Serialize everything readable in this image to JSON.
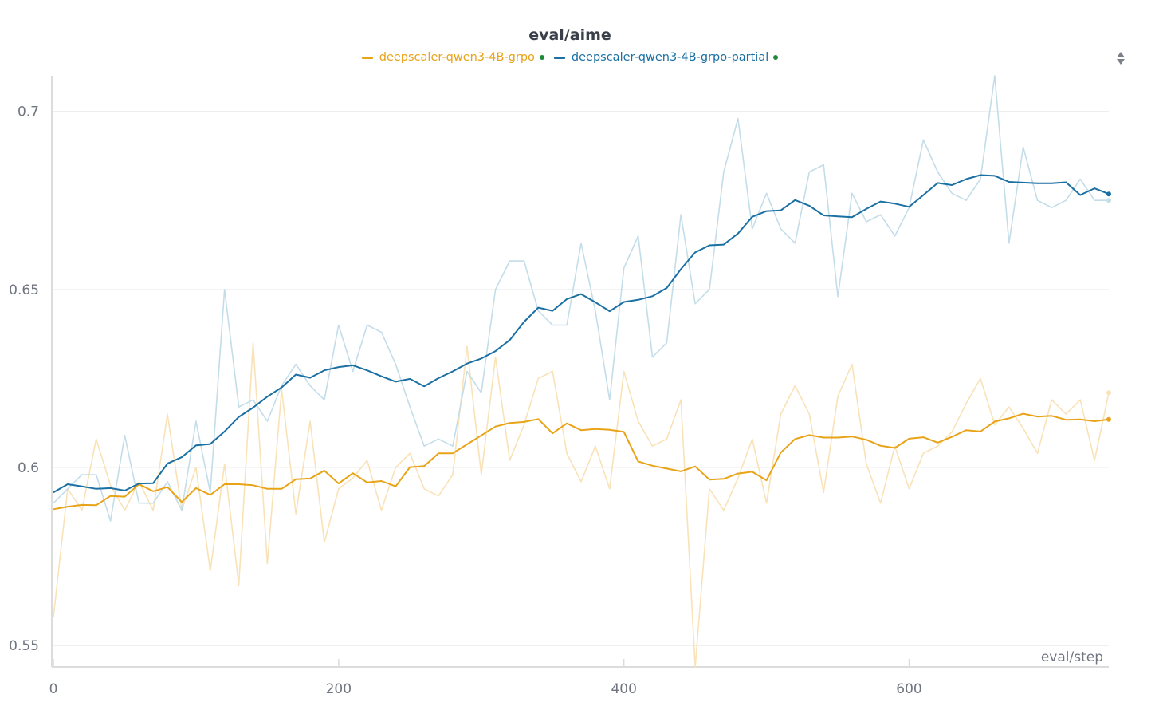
{
  "colors": {
    "series1": "#e8a317",
    "series1_light": "#f9e2b7",
    "series2": "#1a6fa3",
    "series2_light": "#c3dde9",
    "status": "#1f8a3a",
    "grid": "#ececec",
    "axis": "#dcdcdc",
    "text": "#707580"
  },
  "chart_data": {
    "type": "line",
    "title": "eval/aime",
    "xlabel": "eval/step",
    "ylabel": "",
    "xlim": [
      0,
      740
    ],
    "ylim": [
      0.544,
      0.71
    ],
    "xticks": [
      "0",
      "200",
      "400",
      "600"
    ],
    "xtick_values": [
      0,
      200,
      400,
      600
    ],
    "yticks": [
      "0.55",
      "0.6",
      "0.65",
      "0.7"
    ],
    "ytick_values": [
      0.55,
      0.6,
      0.65,
      0.7
    ],
    "x": [
      0,
      10,
      20,
      30,
      40,
      50,
      60,
      70,
      80,
      90,
      100,
      110,
      120,
      130,
      140,
      150,
      160,
      170,
      180,
      190,
      200,
      210,
      220,
      230,
      240,
      250,
      260,
      270,
      280,
      290,
      300,
      310,
      320,
      330,
      340,
      350,
      360,
      370,
      380,
      390,
      400,
      410,
      420,
      430,
      440,
      450,
      460,
      470,
      480,
      490,
      500,
      510,
      520,
      530,
      540,
      550,
      560,
      570,
      580,
      590,
      600,
      610,
      620,
      630,
      640,
      650,
      660,
      670,
      680,
      690,
      700,
      710,
      720,
      730,
      740
    ],
    "series": [
      {
        "name": "deepscaler-qwen3-4B-grpo",
        "color": "#e8a317",
        "raw": [
          0.558,
          0.594,
          0.588,
          0.608,
          0.595,
          0.588,
          0.596,
          0.588,
          0.615,
          0.588,
          0.6,
          0.571,
          0.601,
          0.567,
          0.635,
          0.573,
          0.622,
          0.587,
          0.613,
          0.579,
          0.594,
          0.597,
          0.602,
          0.588,
          0.6,
          0.604,
          0.594,
          0.592,
          0.598,
          0.634,
          0.598,
          0.631,
          0.602,
          0.612,
          0.625,
          0.627,
          0.604,
          0.596,
          0.606,
          0.594,
          0.627,
          0.613,
          0.606,
          0.608,
          0.619,
          0.544,
          0.594,
          0.588,
          0.597,
          0.608,
          0.59,
          0.615,
          0.623,
          0.615,
          0.593,
          0.62,
          0.629,
          0.601,
          0.59,
          0.606,
          0.594,
          0.604,
          0.606,
          0.61,
          0.618,
          0.625,
          0.612,
          0.617,
          0.611,
          0.604,
          0.619,
          0.615,
          0.619,
          0.602,
          0.621
        ],
        "smoothed": [
          0.5883,
          0.589,
          0.5895,
          0.5894,
          0.592,
          0.5918,
          0.5953,
          0.5933,
          0.5945,
          0.5903,
          0.5942,
          0.5923,
          0.5953,
          0.5953,
          0.595,
          0.594,
          0.594,
          0.5967,
          0.5969,
          0.5991,
          0.5955,
          0.5984,
          0.5958,
          0.5962,
          0.5947,
          0.6001,
          0.6004,
          0.604,
          0.604,
          0.6065,
          0.609,
          0.6115,
          0.6125,
          0.6128,
          0.6136,
          0.6096,
          0.6124,
          0.6105,
          0.6108,
          0.6106,
          0.61,
          0.6017,
          0.6005,
          0.5997,
          0.5989,
          0.6003,
          0.5966,
          0.5968,
          0.5983,
          0.5988,
          0.5964,
          0.6042,
          0.608,
          0.6091,
          0.6084,
          0.6084,
          0.6087,
          0.6078,
          0.6061,
          0.6055,
          0.6081,
          0.6085,
          0.607,
          0.6086,
          0.6105,
          0.6101,
          0.6129,
          0.6138,
          0.6151,
          0.6143,
          0.6145,
          0.6134,
          0.6135,
          0.613,
          0.6135
        ]
      },
      {
        "name": "deepscaler-qwen3-4B-grpo-partial",
        "color": "#1a6fa3",
        "raw": [
          0.59,
          0.594,
          0.598,
          0.598,
          0.585,
          0.609,
          0.59,
          0.59,
          0.596,
          0.588,
          0.613,
          0.593,
          0.65,
          0.617,
          0.619,
          0.613,
          0.623,
          0.629,
          0.623,
          0.619,
          0.64,
          0.627,
          0.64,
          0.638,
          0.629,
          0.617,
          0.606,
          0.608,
          0.606,
          0.627,
          0.621,
          0.65,
          0.658,
          0.658,
          0.644,
          0.64,
          0.64,
          0.663,
          0.644,
          0.619,
          0.656,
          0.665,
          0.631,
          0.635,
          0.671,
          0.646,
          0.65,
          0.683,
          0.698,
          0.667,
          0.677,
          0.667,
          0.663,
          0.683,
          0.685,
          0.648,
          0.677,
          0.669,
          0.671,
          0.665,
          0.673,
          0.692,
          0.683,
          0.677,
          0.675,
          0.681,
          0.71,
          0.663,
          0.69,
          0.675,
          0.673,
          0.675,
          0.681,
          0.675,
          0.675
        ],
        "smoothed": [
          0.593,
          0.5953,
          0.5947,
          0.594,
          0.5942,
          0.5935,
          0.5955,
          0.5956,
          0.6011,
          0.6029,
          0.6062,
          0.6066,
          0.6101,
          0.6142,
          0.6168,
          0.6199,
          0.6225,
          0.6261,
          0.6252,
          0.6273,
          0.6282,
          0.6287,
          0.6273,
          0.6256,
          0.6241,
          0.6249,
          0.6228,
          0.6251,
          0.627,
          0.6292,
          0.6306,
          0.6327,
          0.6358,
          0.6409,
          0.6449,
          0.644,
          0.6473,
          0.6487,
          0.6464,
          0.6439,
          0.6465,
          0.6471,
          0.6481,
          0.6504,
          0.6557,
          0.6604,
          0.6624,
          0.6626,
          0.6657,
          0.6704,
          0.672,
          0.6722,
          0.6751,
          0.6735,
          0.6708,
          0.6705,
          0.6703,
          0.6726,
          0.6747,
          0.6741,
          0.6732,
          0.6765,
          0.6799,
          0.6793,
          0.681,
          0.6821,
          0.6819,
          0.6802,
          0.68,
          0.6798,
          0.6798,
          0.6801,
          0.6765,
          0.6784,
          0.6768
        ]
      }
    ]
  }
}
